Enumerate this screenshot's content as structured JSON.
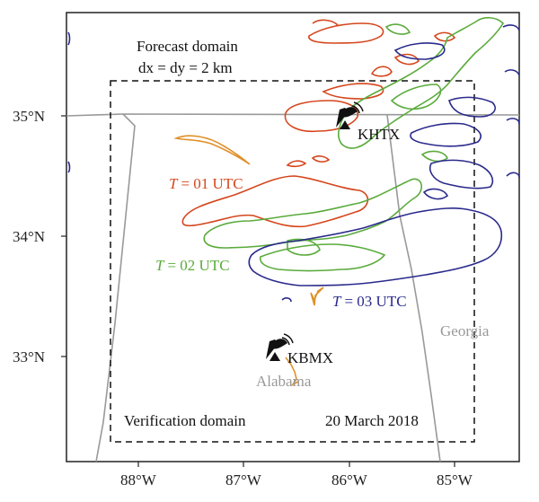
{
  "map": {
    "domain_title": "Forecast domain",
    "domain_spacing": "dx = dy = 2 km",
    "verification_label": "Verification domain",
    "date": "20 March 2018",
    "lat_labels": [
      "35°N",
      "34°N",
      "33°N"
    ],
    "lon_labels": [
      "88°W",
      "87°W",
      "86°W",
      "85°W"
    ],
    "states": [
      "Alabama",
      "Georgia"
    ],
    "radars": [
      "KHTX",
      "KBMX"
    ],
    "contours": [
      {
        "T": "T",
        "eq": "= 01 UTC",
        "color": "#d4461c"
      },
      {
        "T": "T",
        "eq": "= 02 UTC",
        "color": "#5aab3c"
      },
      {
        "T": "T",
        "eq": "= 03 UTC",
        "color": "#2a2a8c"
      }
    ],
    "colors": {
      "state_border": "#999999",
      "state_label": "#999999",
      "contour_01": "#d4461c",
      "contour_02": "#5aab3c",
      "contour_03": "#2a2a8c",
      "orange_contour": "#e0902a"
    }
  }
}
